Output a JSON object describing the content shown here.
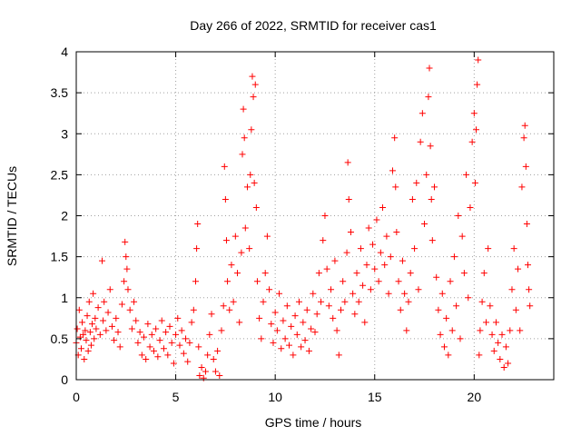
{
  "chart_data": {
    "type": "scatter",
    "title": "Day 266 of 2022, SRMTID for receiver cas1",
    "xlabel": "GPS time / hours",
    "ylabel": "SRMTID / TECUs",
    "xlim": [
      0,
      24
    ],
    "ylim": [
      0,
      4
    ],
    "x_ticks": [
      0,
      5,
      10,
      15,
      20
    ],
    "y_ticks": [
      0,
      0.5,
      1,
      1.5,
      2,
      2.5,
      3,
      3.5,
      4
    ],
    "x_tick_labels": [
      "0",
      "5",
      "10",
      "15",
      "20"
    ],
    "y_tick_labels": [
      "0",
      "0.5",
      "1",
      "1.5",
      "2",
      "2.5",
      "3",
      "3.5",
      "4"
    ],
    "grid": true,
    "marker": "+",
    "marker_color": "#ff0000",
    "series": [
      {
        "name": "cas1",
        "points": [
          [
            0.0,
            0.45
          ],
          [
            0.05,
            0.62
          ],
          [
            0.1,
            0.3
          ],
          [
            0.15,
            0.85
          ],
          [
            0.2,
            0.52
          ],
          [
            0.25,
            0.38
          ],
          [
            0.3,
            0.7
          ],
          [
            0.35,
            0.55
          ],
          [
            0.4,
            0.25
          ],
          [
            0.45,
            0.6
          ],
          [
            0.5,
            0.48
          ],
          [
            0.55,
            0.78
          ],
          [
            0.6,
            0.35
          ],
          [
            0.65,
            0.95
          ],
          [
            0.7,
            0.58
          ],
          [
            0.75,
            0.42
          ],
          [
            0.8,
            0.68
          ],
          [
            0.85,
            1.05
          ],
          [
            0.9,
            0.5
          ],
          [
            0.95,
            0.75
          ],
          [
            1.0,
            0.62
          ],
          [
            1.1,
            0.88
          ],
          [
            1.2,
            0.55
          ],
          [
            1.3,
            1.45
          ],
          [
            1.35,
            0.72
          ],
          [
            1.4,
            0.95
          ],
          [
            1.5,
            0.6
          ],
          [
            1.6,
            0.82
          ],
          [
            1.7,
            1.1
          ],
          [
            1.8,
            0.65
          ],
          [
            1.9,
            0.48
          ],
          [
            2.0,
            0.75
          ],
          [
            2.1,
            0.58
          ],
          [
            2.2,
            0.4
          ],
          [
            2.3,
            0.92
          ],
          [
            2.4,
            1.2
          ],
          [
            2.45,
            1.68
          ],
          [
            2.5,
            1.5
          ],
          [
            2.55,
            1.35
          ],
          [
            2.6,
            1.1
          ],
          [
            2.7,
            0.85
          ],
          [
            2.8,
            0.62
          ],
          [
            2.9,
            0.95
          ],
          [
            3.0,
            0.72
          ],
          [
            3.1,
            0.45
          ],
          [
            3.2,
            0.58
          ],
          [
            3.3,
            0.3
          ],
          [
            3.4,
            0.52
          ],
          [
            3.5,
            0.25
          ],
          [
            3.6,
            0.68
          ],
          [
            3.7,
            0.4
          ],
          [
            3.8,
            0.55
          ],
          [
            3.9,
            0.35
          ],
          [
            4.0,
            0.62
          ],
          [
            4.1,
            0.28
          ],
          [
            4.2,
            0.48
          ],
          [
            4.3,
            0.72
          ],
          [
            4.4,
            0.38
          ],
          [
            4.5,
            0.58
          ],
          [
            4.6,
            0.3
          ],
          [
            4.7,
            0.65
          ],
          [
            4.8,
            0.45
          ],
          [
            4.9,
            0.2
          ],
          [
            5.0,
            0.55
          ],
          [
            5.1,
            0.75
          ],
          [
            5.2,
            0.42
          ],
          [
            5.3,
            0.6
          ],
          [
            5.4,
            0.32
          ],
          [
            5.5,
            0.5
          ],
          [
            5.6,
            0.22
          ],
          [
            5.7,
            0.45
          ],
          [
            5.8,
            0.7
          ],
          [
            5.9,
            0.85
          ],
          [
            6.0,
            1.2
          ],
          [
            6.05,
            1.6
          ],
          [
            6.1,
            1.9
          ],
          [
            6.15,
            0.4
          ],
          [
            6.2,
            0.05
          ],
          [
            6.3,
            0.15
          ],
          [
            6.4,
            0.02
          ],
          [
            6.5,
            0.1
          ],
          [
            6.6,
            0.3
          ],
          [
            6.7,
            0.55
          ],
          [
            6.8,
            0.8
          ],
          [
            6.9,
            0.25
          ],
          [
            7.0,
            0.1
          ],
          [
            7.1,
            0.35
          ],
          [
            7.2,
            0.05
          ],
          [
            7.3,
            0.6
          ],
          [
            7.4,
            0.9
          ],
          [
            7.45,
            2.6
          ],
          [
            7.5,
            2.2
          ],
          [
            7.55,
            1.7
          ],
          [
            7.6,
            1.2
          ],
          [
            7.7,
            0.85
          ],
          [
            7.8,
            1.4
          ],
          [
            7.9,
            0.95
          ],
          [
            8.0,
            1.75
          ],
          [
            8.1,
            1.3
          ],
          [
            8.2,
            0.7
          ],
          [
            8.3,
            1.55
          ],
          [
            8.35,
            2.75
          ],
          [
            8.4,
            3.3
          ],
          [
            8.45,
            2.95
          ],
          [
            8.5,
            1.85
          ],
          [
            8.6,
            2.35
          ],
          [
            8.7,
            1.6
          ],
          [
            8.75,
            2.5
          ],
          [
            8.8,
            3.05
          ],
          [
            8.85,
            3.7
          ],
          [
            8.9,
            3.45
          ],
          [
            8.95,
            2.4
          ],
          [
            9.0,
            3.6
          ],
          [
            9.05,
            2.1
          ],
          [
            9.1,
            1.2
          ],
          [
            9.2,
            0.75
          ],
          [
            9.3,
            0.5
          ],
          [
            9.4,
            0.95
          ],
          [
            9.5,
            1.3
          ],
          [
            9.6,
            1.75
          ],
          [
            9.7,
            1.1
          ],
          [
            9.8,
            0.68
          ],
          [
            9.9,
            0.45
          ],
          [
            10.0,
            0.82
          ],
          [
            10.1,
            0.6
          ],
          [
            10.2,
            1.05
          ],
          [
            10.3,
            0.38
          ],
          [
            10.4,
            0.72
          ],
          [
            10.5,
            0.5
          ],
          [
            10.6,
            0.9
          ],
          [
            10.7,
            0.42
          ],
          [
            10.8,
            0.65
          ],
          [
            10.9,
            0.3
          ],
          [
            11.0,
            0.78
          ],
          [
            11.1,
            0.55
          ],
          [
            11.2,
            0.95
          ],
          [
            11.3,
            0.4
          ],
          [
            11.4,
            0.7
          ],
          [
            11.5,
            0.48
          ],
          [
            11.6,
            0.85
          ],
          [
            11.7,
            0.35
          ],
          [
            11.8,
            0.62
          ],
          [
            11.9,
            1.05
          ],
          [
            12.0,
            0.58
          ],
          [
            12.1,
            0.8
          ],
          [
            12.2,
            1.3
          ],
          [
            12.3,
            0.95
          ],
          [
            12.4,
            1.7
          ],
          [
            12.5,
            2.0
          ],
          [
            12.6,
            1.35
          ],
          [
            12.7,
            0.9
          ],
          [
            12.8,
            1.1
          ],
          [
            12.9,
            0.75
          ],
          [
            13.0,
            1.45
          ],
          [
            13.1,
            0.6
          ],
          [
            13.2,
            0.3
          ],
          [
            13.3,
            0.85
          ],
          [
            13.4,
            1.2
          ],
          [
            13.5,
            0.95
          ],
          [
            13.6,
            1.55
          ],
          [
            13.65,
            2.65
          ],
          [
            13.7,
            2.2
          ],
          [
            13.8,
            1.8
          ],
          [
            13.9,
            1.05
          ],
          [
            14.0,
            0.8
          ],
          [
            14.1,
            1.3
          ],
          [
            14.2,
            0.95
          ],
          [
            14.3,
            1.6
          ],
          [
            14.4,
            1.15
          ],
          [
            14.5,
            0.7
          ],
          [
            14.6,
            1.4
          ],
          [
            14.7,
            1.85
          ],
          [
            14.8,
            1.1
          ],
          [
            14.9,
            1.65
          ],
          [
            15.0,
            1.35
          ],
          [
            15.1,
            1.95
          ],
          [
            15.2,
            1.2
          ],
          [
            15.3,
            1.55
          ],
          [
            15.4,
            2.1
          ],
          [
            15.5,
            1.4
          ],
          [
            15.6,
            1.75
          ],
          [
            15.7,
            1.05
          ],
          [
            15.8,
            1.5
          ],
          [
            15.9,
            2.55
          ],
          [
            16.0,
            2.95
          ],
          [
            16.05,
            2.35
          ],
          [
            16.1,
            1.8
          ],
          [
            16.2,
            1.2
          ],
          [
            16.3,
            0.85
          ],
          [
            16.4,
            1.45
          ],
          [
            16.5,
            1.05
          ],
          [
            16.6,
            0.6
          ],
          [
            16.7,
            0.95
          ],
          [
            16.8,
            1.3
          ],
          [
            16.9,
            2.2
          ],
          [
            17.0,
            1.6
          ],
          [
            17.1,
            2.4
          ],
          [
            17.2,
            1.1
          ],
          [
            17.3,
            2.9
          ],
          [
            17.4,
            3.25
          ],
          [
            17.5,
            1.9
          ],
          [
            17.6,
            2.5
          ],
          [
            17.7,
            3.45
          ],
          [
            17.75,
            3.8
          ],
          [
            17.8,
            2.85
          ],
          [
            17.85,
            2.2
          ],
          [
            17.9,
            1.7
          ],
          [
            18.0,
            2.35
          ],
          [
            18.1,
            1.25
          ],
          [
            18.2,
            0.85
          ],
          [
            18.3,
            0.55
          ],
          [
            18.4,
            1.05
          ],
          [
            18.5,
            0.4
          ],
          [
            18.6,
            0.75
          ],
          [
            18.7,
            0.3
          ],
          [
            18.8,
            1.2
          ],
          [
            18.9,
            0.6
          ],
          [
            19.0,
            1.5
          ],
          [
            19.1,
            0.9
          ],
          [
            19.2,
            2.0
          ],
          [
            19.3,
            0.5
          ],
          [
            19.4,
            1.75
          ],
          [
            19.5,
            1.3
          ],
          [
            19.6,
            2.5
          ],
          [
            19.7,
            1.0
          ],
          [
            19.8,
            2.1
          ],
          [
            19.9,
            2.9
          ],
          [
            20.0,
            3.25
          ],
          [
            20.05,
            2.4
          ],
          [
            20.1,
            3.05
          ],
          [
            20.15,
            3.6
          ],
          [
            20.2,
            3.9
          ],
          [
            20.25,
            0.3
          ],
          [
            20.3,
            0.6
          ],
          [
            20.4,
            0.95
          ],
          [
            20.5,
            1.3
          ],
          [
            20.6,
            0.7
          ],
          [
            20.7,
            1.6
          ],
          [
            20.8,
            0.9
          ],
          [
            20.9,
            0.55
          ],
          [
            21.0,
            0.35
          ],
          [
            21.1,
            0.7
          ],
          [
            21.2,
            0.45
          ],
          [
            21.3,
            0.25
          ],
          [
            21.4,
            0.55
          ],
          [
            21.5,
            0.15
          ],
          [
            21.6,
            0.4
          ],
          [
            21.7,
            0.2
          ],
          [
            21.8,
            0.6
          ],
          [
            21.9,
            1.1
          ],
          [
            22.0,
            1.6
          ],
          [
            22.1,
            0.85
          ],
          [
            22.2,
            1.35
          ],
          [
            22.3,
            0.6
          ],
          [
            22.4,
            2.35
          ],
          [
            22.5,
            2.95
          ],
          [
            22.55,
            3.1
          ],
          [
            22.6,
            2.6
          ],
          [
            22.65,
            1.9
          ],
          [
            22.7,
            1.4
          ],
          [
            22.75,
            1.1
          ],
          [
            22.8,
            0.9
          ]
        ]
      }
    ]
  }
}
